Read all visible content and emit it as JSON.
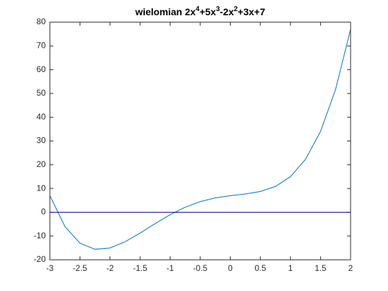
{
  "chart_data": {
    "type": "line",
    "title_parts": [
      "wielomian 2x",
      "4",
      "+5x",
      "3",
      "-2x",
      "2",
      "+3x+7"
    ],
    "series": [
      {
        "color": "#0072bd",
        "x": [
          -3,
          -2.75,
          -2.5,
          -2.25,
          -2,
          -1.75,
          -1.5,
          -1.25,
          -1,
          -0.75,
          -0.5,
          -0.25,
          0,
          0.25,
          0.5,
          0.75,
          1,
          1.25,
          1.5,
          1.75,
          2
        ],
        "values": [
          7,
          -5.98,
          -13,
          -15.57,
          -15,
          -12.41,
          -8.75,
          -4.76,
          -1,
          2.15,
          4.5,
          6.06,
          7,
          7.71,
          8.75,
          10.87,
          15,
          22.27,
          34,
          51.68,
          77
        ]
      },
      {
        "color": "#000080",
        "x": [
          -3,
          2
        ],
        "values": [
          0,
          0
        ]
      }
    ],
    "xlim": [
      -3,
      2
    ],
    "xticks": [
      -3,
      -2.5,
      -2,
      -1.5,
      -1,
      -0.5,
      0,
      0.5,
      1,
      1.5,
      2
    ],
    "ylim": [
      -20,
      80
    ],
    "yticks": [
      -20,
      -10,
      0,
      10,
      20,
      30,
      40,
      50,
      60,
      70,
      80
    ],
    "grid": false
  }
}
